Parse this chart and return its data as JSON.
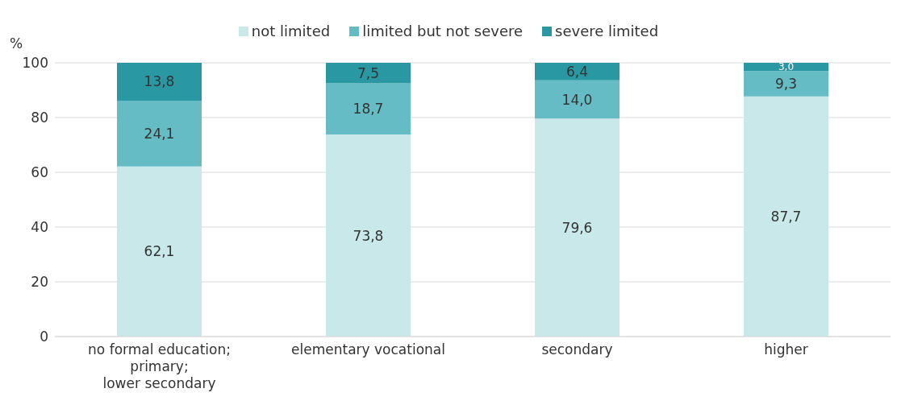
{
  "chart_data": {
    "type": "bar",
    "stacked": true,
    "ylabel": "%",
    "categories": [
      "no formal education;\nprimary;\nlower secondary",
      "elementary vocational",
      "secondary",
      "higher"
    ],
    "series": [
      {
        "name": "not limited",
        "color": "#c9e8ea",
        "values": [
          62.1,
          73.8,
          79.6,
          87.7
        ],
        "value_labels": [
          "62,1",
          "73,8",
          "79,6",
          "87,7"
        ]
      },
      {
        "name": "limited but not severe",
        "color": "#66bcc4",
        "values": [
          24.1,
          18.7,
          14.0,
          9.3
        ],
        "value_labels": [
          "24,1",
          "18,7",
          "14,0",
          "9,3"
        ]
      },
      {
        "name": "severe limited",
        "color": "#2a98a2",
        "values": [
          13.8,
          7.5,
          6.4,
          3.0
        ],
        "value_labels": [
          "13,8",
          "7,5",
          "6,4",
          "3,0"
        ]
      }
    ],
    "ylim": [
      0,
      100
    ],
    "yticks": [
      0,
      20,
      40,
      60,
      80,
      100
    ],
    "grid": "y",
    "legend": "top"
  }
}
